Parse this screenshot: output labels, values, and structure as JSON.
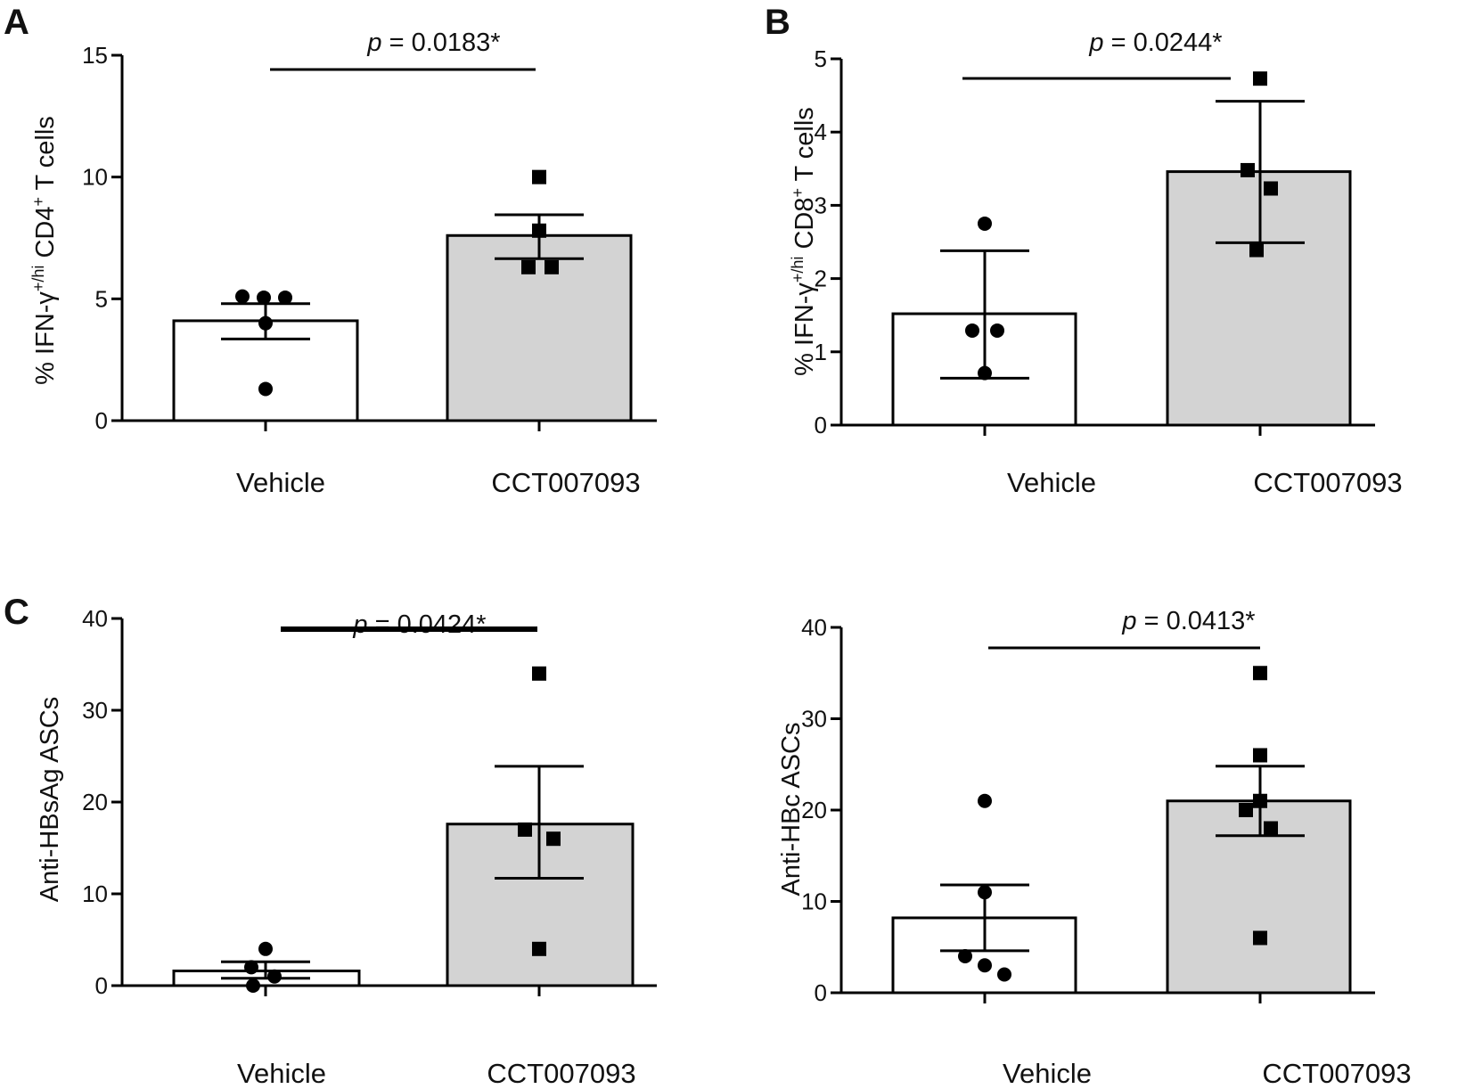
{
  "figure": {
    "panels": [
      {
        "letter": "A"
      },
      {
        "letter": "B"
      },
      {
        "letter": "C"
      },
      {
        "letter": ""
      }
    ]
  },
  "colors": {
    "vehicle_fill": "#ffffff",
    "treated_fill": "#d3d3d3",
    "stroke": "#000000",
    "marker": "#000000"
  },
  "chart_data": [
    {
      "type": "bar",
      "panel": "A",
      "categories": [
        "Vehicle",
        "CCT007093"
      ],
      "values": [
        4.1,
        7.6
      ],
      "error_low": [
        3.35,
        6.65
      ],
      "error_high": [
        4.8,
        8.45
      ],
      "points": [
        [
          5.1,
          5.05,
          5.05,
          4.0,
          1.3
        ],
        [
          10.0,
          7.8,
          6.3,
          6.3
        ]
      ],
      "ylabel_main": "% IFN-γ",
      "ylabel_sup1": "+/hi",
      "ylabel_mid": " CD4",
      "ylabel_sup2": "+",
      "ylabel_end": " T cells",
      "ylim": [
        0,
        15
      ],
      "yticks": [
        "0",
        "5",
        "10",
        "15"
      ],
      "p_prefix": "p",
      "p_text": " = 0.0183*"
    },
    {
      "type": "bar",
      "panel": "B",
      "categories": [
        "Vehicle",
        "CCT007093"
      ],
      "values": [
        1.52,
        3.46
      ],
      "error_low": [
        0.64,
        2.49
      ],
      "error_high": [
        2.38,
        4.42
      ],
      "points": [
        [
          2.75,
          1.29,
          1.29,
          0.71
        ],
        [
          4.73,
          3.48,
          3.23,
          2.39
        ]
      ],
      "ylabel_main": "% IFN-γ",
      "ylabel_sup1": "+/hi",
      "ylabel_mid": " CD8",
      "ylabel_sup2": "+",
      "ylabel_end": " T cells",
      "ylim": [
        0,
        5
      ],
      "yticks": [
        "0",
        "1",
        "2",
        "3",
        "4",
        "5"
      ],
      "p_prefix": "p",
      "p_text": " = 0.0244*"
    },
    {
      "type": "bar",
      "panel": "C",
      "categories": [
        "Vehicle",
        "CCT007093"
      ],
      "values": [
        1.6,
        17.6
      ],
      "error_low": [
        0.8,
        11.7
      ],
      "error_high": [
        2.6,
        23.9
      ],
      "points": [
        [
          4.0,
          2.0,
          1.0,
          0.0
        ],
        [
          34.0,
          17.0,
          16.0,
          4.0
        ]
      ],
      "ylabel_main": "Anti-HBsAg ASCs",
      "ylabel_sup1": "",
      "ylabel_mid": "",
      "ylabel_sup2": "",
      "ylabel_end": "",
      "ylim": [
        0,
        40
      ],
      "yticks": [
        "0",
        "10",
        "20",
        "30",
        "40"
      ],
      "p_prefix": "p",
      "p_text": " = 0.0424*"
    },
    {
      "type": "bar",
      "panel": "D",
      "categories": [
        "Vehicle",
        "CCT007093"
      ],
      "values": [
        8.2,
        21.0
      ],
      "error_low": [
        4.6,
        17.2
      ],
      "error_high": [
        11.8,
        24.8
      ],
      "points": [
        [
          21.0,
          11.0,
          4.0,
          3.0,
          2.0
        ],
        [
          35.0,
          26.0,
          21.0,
          20.0,
          18.0,
          6.0
        ]
      ],
      "ylabel_main": "Anti-HBc ASCs",
      "ylabel_sup1": "",
      "ylabel_mid": "",
      "ylabel_sup2": "",
      "ylabel_end": "",
      "ylim": [
        0,
        40
      ],
      "yticks": [
        "0",
        "10",
        "20",
        "30",
        "40"
      ],
      "p_prefix": "p",
      "p_text": " = 0.0413*"
    }
  ]
}
